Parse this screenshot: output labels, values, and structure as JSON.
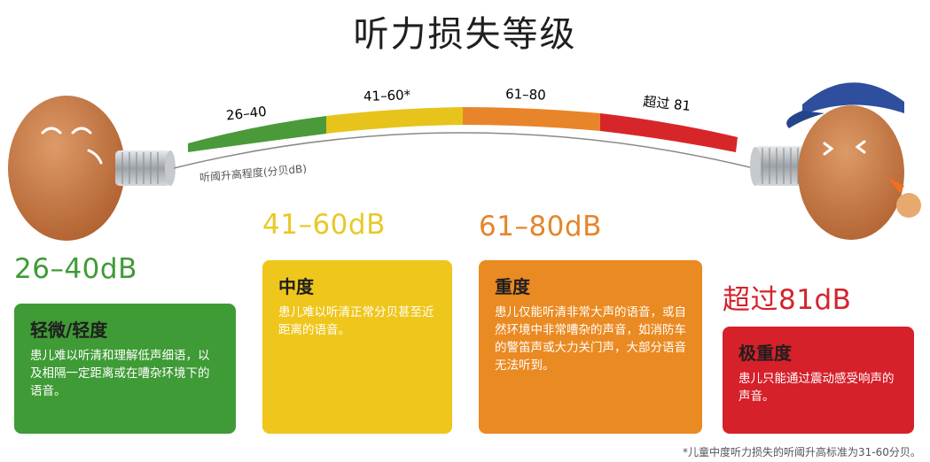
{
  "title": "听力损失等级",
  "scale": {
    "axis_label": "听阈升高程度(分贝dB)",
    "segments": [
      {
        "label": "26–40",
        "color": "#4a9a3a"
      },
      {
        "label": "41–60*",
        "color": "#e6c41c"
      },
      {
        "label": "61–80",
        "color": "#e8852a"
      },
      {
        "label": "超过 81",
        "color": "#d7262a"
      }
    ]
  },
  "levels": [
    {
      "range": "26–40dB",
      "heading": "轻微/轻度",
      "description": "患儿难以听清和理解低声细语，以及相隔一定距离或在嘈杂环境下的语音。",
      "color": "#3f9b36",
      "range_color": "#3f9b36"
    },
    {
      "range": "41–60dB",
      "heading": "中度",
      "description": "患儿难以听清正常分贝甚至近距离的语音。",
      "color": "#efc61b",
      "range_color": "#e9c828"
    },
    {
      "range": "61–80dB",
      "heading": "重度",
      "description": "患儿仅能听清非常大声的语音，或自然环境中非常嘈杂的声音，如消防车的警笛声或大力关门声，大部分语音无法听到。",
      "color": "#ea8a22",
      "range_color": "#e4862b"
    },
    {
      "range": "超过81dB",
      "heading": "极重度",
      "description": "患儿只能通过震动感受响声的声音。",
      "color": "#d6202a",
      "range_color": "#d4232b"
    }
  ],
  "footnote": "*儿童中度听力损失的听阈升高标准为31-60分贝。",
  "colors": {
    "can": "#b8bcc0",
    "egg": "#c87a45",
    "cap": "#2d4f9e"
  }
}
